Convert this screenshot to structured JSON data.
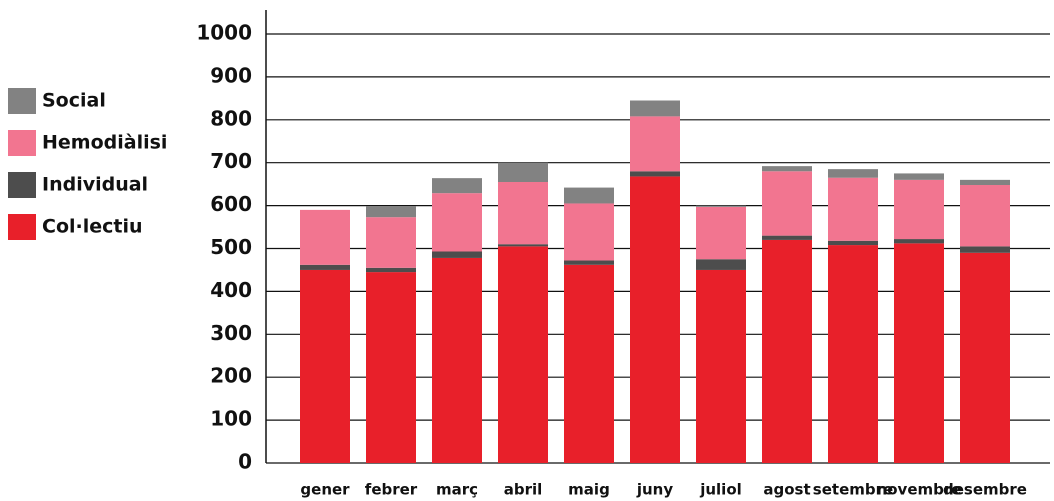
{
  "chart_data": {
    "type": "stacked_bar",
    "categories": [
      "gener",
      "febrer",
      "març",
      "abril",
      "maig",
      "juny",
      "juliol",
      "agost",
      "setembre",
      "novembre",
      "desembre"
    ],
    "series": [
      {
        "name": "Col·lectiu",
        "color": "#e8202a",
        "values": [
          450,
          445,
          478,
          505,
          462,
          668,
          450,
          520,
          508,
          512,
          490
        ]
      },
      {
        "name": "Individual",
        "color": "#4d4d4d",
        "values": [
          12,
          10,
          15,
          5,
          10,
          12,
          25,
          10,
          10,
          10,
          15
        ]
      },
      {
        "name": "Hemodiàlisi",
        "color": "#f27590",
        "values": [
          128,
          118,
          136,
          145,
          133,
          128,
          122,
          150,
          147,
          138,
          143
        ]
      },
      {
        "name": "Social",
        "color": "#828282",
        "values": [
          0,
          26,
          35,
          45,
          37,
          37,
          3,
          12,
          20,
          15,
          12
        ]
      }
    ],
    "ylim": [
      0,
      1000
    ],
    "yticks": [
      0,
      100,
      200,
      300,
      400,
      500,
      600,
      700,
      800,
      900,
      1000
    ],
    "grid": true,
    "legend": "left"
  }
}
